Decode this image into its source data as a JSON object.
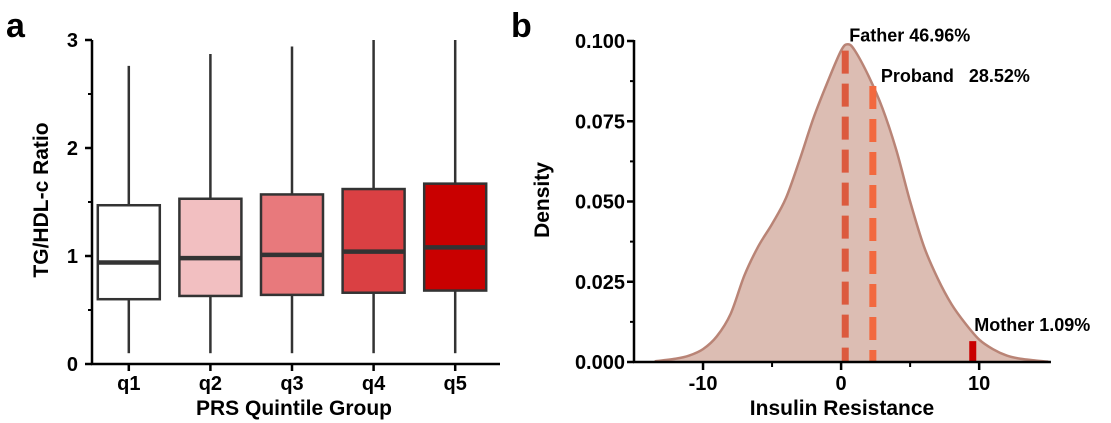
{
  "figure": {
    "panel_a_letter": "a",
    "panel_b_letter": "b"
  },
  "chart_data": [
    {
      "type": "box",
      "xlabel": "PRS Quintile Group",
      "ylabel": "TG/HDL-c Ratio",
      "ylim": [
        0,
        3
      ],
      "yticks": [
        "0",
        "1",
        "2",
        "3"
      ],
      "categories": [
        "q1",
        "q2",
        "q3",
        "q4",
        "q5"
      ],
      "colors": [
        "#ffffff",
        "#f2bfc1",
        "#e8797c",
        "#da4043",
        "#c90000"
      ],
      "boxes": [
        {
          "whisker_low": 0.1,
          "q1": 0.6,
          "median": 0.94,
          "q3": 1.47,
          "whisker_high": 2.76
        },
        {
          "whisker_low": 0.1,
          "q1": 0.63,
          "median": 0.98,
          "q3": 1.53,
          "whisker_high": 2.87
        },
        {
          "whisker_low": 0.1,
          "q1": 0.64,
          "median": 1.01,
          "q3": 1.57,
          "whisker_high": 2.94
        },
        {
          "whisker_low": 0.1,
          "q1": 0.66,
          "median": 1.04,
          "q3": 1.62,
          "whisker_high": 3.0
        },
        {
          "whisker_low": 0.1,
          "q1": 0.68,
          "median": 1.08,
          "q3": 1.67,
          "whisker_high": 3.0
        }
      ]
    },
    {
      "type": "area",
      "xlabel": "Insulin Resistance",
      "ylabel": "Density",
      "xlim": [
        -15,
        16
      ],
      "ylim": [
        0,
        0.1
      ],
      "xticks": [
        -10,
        0,
        10
      ],
      "xtick_labels": [
        "-10",
        "0",
        "10"
      ],
      "yticks": [
        0,
        0.025,
        0.05,
        0.075,
        0.1
      ],
      "ytick_labels": [
        "0.000",
        "0.025",
        "0.050",
        "0.075",
        "0.100"
      ],
      "fill_color": "#dcbdb3",
      "line_color": "#b98476",
      "density": {
        "x": [
          -13.5,
          -12,
          -11,
          -10,
          -9,
          -8,
          -7,
          -6,
          -5,
          -4,
          -3,
          -2,
          -1,
          0,
          0.5,
          1,
          2,
          3,
          4,
          5,
          6,
          7,
          8,
          9,
          10,
          11,
          12,
          13,
          14,
          15
        ],
        "y": [
          0.0002,
          0.001,
          0.002,
          0.004,
          0.008,
          0.015,
          0.027,
          0.036,
          0.043,
          0.051,
          0.063,
          0.076,
          0.087,
          0.097,
          0.099,
          0.097,
          0.089,
          0.079,
          0.066,
          0.05,
          0.036,
          0.026,
          0.018,
          0.012,
          0.007,
          0.004,
          0.002,
          0.001,
          0.0005,
          0.0001
        ]
      },
      "markers": [
        {
          "label": "Father 46.96%",
          "x": 0.3,
          "y_top": 0.097,
          "color": "#dc5a3e",
          "style": "dashed"
        },
        {
          "label": "Proband   28.52%",
          "x": 2.3,
          "y_top": 0.086,
          "color": "#f2693f",
          "style": "dashed"
        },
        {
          "label": "Mother 1.09%",
          "x": 9.5,
          "y_top": 0.0065,
          "color": "#c90000",
          "style": "solid"
        }
      ]
    }
  ]
}
